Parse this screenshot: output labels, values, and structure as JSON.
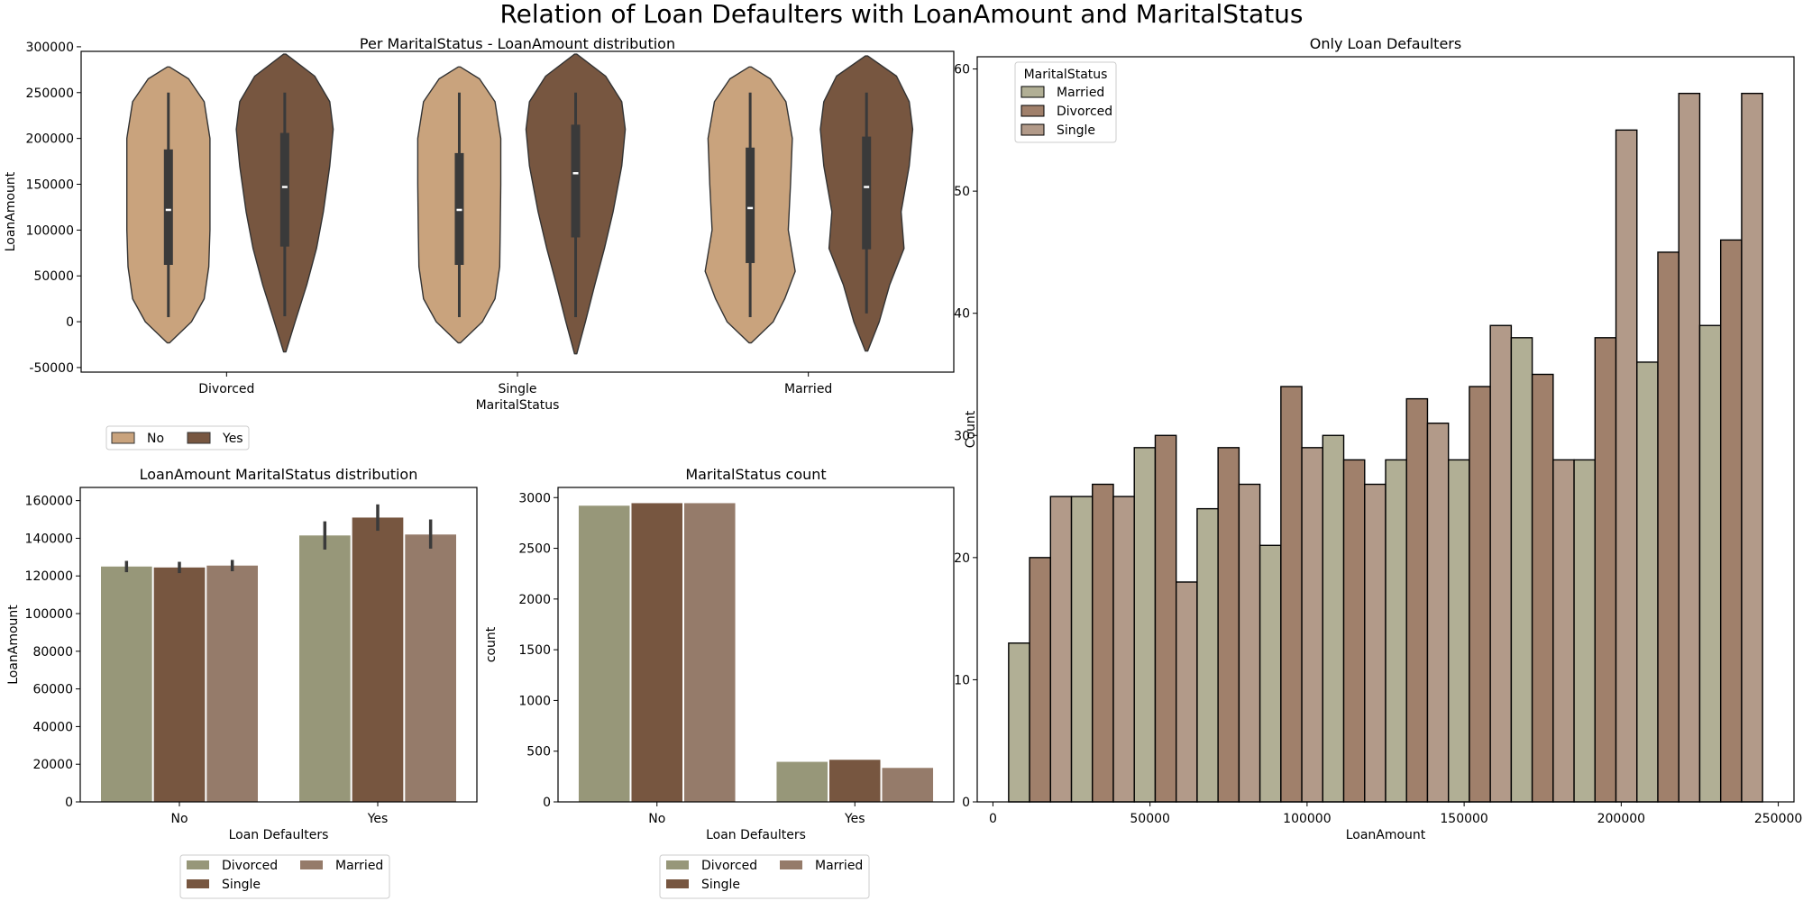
{
  "figure": {
    "title": "Relation of Loan Defaulters with LoanAmount and MaritalStatus"
  },
  "colors": {
    "violin_no": "#c9a37d",
    "violin_yes": "#775640",
    "bar_divorced": "#979779",
    "bar_single": "#775640",
    "bar_married": "#957b6a",
    "hist_married": "#b1af95",
    "hist_divorced": "#a0806b",
    "hist_single": "#b29a89"
  },
  "chart_data": [
    {
      "id": "violin",
      "type": "violin",
      "title": "Per MaritalStatus - LoanAmount distribution",
      "xlabel": "MaritalStatus",
      "ylabel": "LoanAmount",
      "ylim": [
        -55000,
        295000
      ],
      "yticks": [
        -50000,
        0,
        50000,
        100000,
        150000,
        200000,
        250000,
        300000
      ],
      "categories": [
        "Divorced",
        "Single",
        "Married"
      ],
      "legend": {
        "placement": "below",
        "entries": [
          "No",
          "Yes"
        ]
      },
      "violins": [
        {
          "category": "Divorced",
          "hue": "No",
          "min": 5000,
          "q1": 62000,
          "median": 122000,
          "q3": 188000,
          "max": 250000,
          "kde_min": -23000,
          "kde_max": 278000,
          "profile": [
            [
              -23000,
              0.02
            ],
            [
              0,
              0.4
            ],
            [
              25000,
              0.62
            ],
            [
              60000,
              0.7
            ],
            [
              100000,
              0.72
            ],
            [
              150000,
              0.72
            ],
            [
              200000,
              0.72
            ],
            [
              240000,
              0.62
            ],
            [
              265000,
              0.35
            ],
            [
              278000,
              0.02
            ]
          ]
        },
        {
          "category": "Divorced",
          "hue": "Yes",
          "min": 6000,
          "q1": 82000,
          "median": 147000,
          "q3": 206000,
          "max": 250000,
          "kde_min": -33000,
          "kde_max": 292000,
          "profile": [
            [
              -33000,
              0.02
            ],
            [
              0,
              0.18
            ],
            [
              40000,
              0.38
            ],
            [
              80000,
              0.55
            ],
            [
              120000,
              0.67
            ],
            [
              170000,
              0.78
            ],
            [
              210000,
              0.84
            ],
            [
              240000,
              0.78
            ],
            [
              268000,
              0.52
            ],
            [
              292000,
              0.02
            ]
          ]
        },
        {
          "category": "Single",
          "hue": "No",
          "min": 5000,
          "q1": 62000,
          "median": 122000,
          "q3": 184000,
          "max": 250000,
          "kde_min": -23000,
          "kde_max": 278000,
          "profile": [
            [
              -23000,
              0.02
            ],
            [
              0,
              0.4
            ],
            [
              25000,
              0.62
            ],
            [
              60000,
              0.7
            ],
            [
              100000,
              0.71
            ],
            [
              150000,
              0.72
            ],
            [
              200000,
              0.72
            ],
            [
              240000,
              0.62
            ],
            [
              265000,
              0.35
            ],
            [
              278000,
              0.02
            ]
          ]
        },
        {
          "category": "Single",
          "hue": "Yes",
          "min": 5000,
          "q1": 92000,
          "median": 162000,
          "q3": 215000,
          "max": 250000,
          "kde_min": -35000,
          "kde_max": 292000,
          "profile": [
            [
              -35000,
              0.02
            ],
            [
              0,
              0.17
            ],
            [
              40000,
              0.33
            ],
            [
              80000,
              0.5
            ],
            [
              120000,
              0.65
            ],
            [
              170000,
              0.8
            ],
            [
              210000,
              0.86
            ],
            [
              240000,
              0.8
            ],
            [
              268000,
              0.52
            ],
            [
              292000,
              0.02
            ]
          ]
        },
        {
          "category": "Married",
          "hue": "No",
          "min": 5000,
          "q1": 64000,
          "median": 124000,
          "q3": 190000,
          "max": 250000,
          "kde_min": -23000,
          "kde_max": 278000,
          "profile": [
            [
              -23000,
              0.02
            ],
            [
              0,
              0.4
            ],
            [
              25000,
              0.6
            ],
            [
              55000,
              0.78
            ],
            [
              100000,
              0.66
            ],
            [
              150000,
              0.7
            ],
            [
              200000,
              0.73
            ],
            [
              240000,
              0.62
            ],
            [
              265000,
              0.35
            ],
            [
              278000,
              0.02
            ]
          ]
        },
        {
          "category": "Married",
          "hue": "Yes",
          "min": 9000,
          "q1": 79000,
          "median": 147000,
          "q3": 202000,
          "max": 250000,
          "kde_min": -32000,
          "kde_max": 290000,
          "profile": [
            [
              -32000,
              0.02
            ],
            [
              0,
              0.22
            ],
            [
              40000,
              0.4
            ],
            [
              80000,
              0.65
            ],
            [
              120000,
              0.6
            ],
            [
              170000,
              0.74
            ],
            [
              210000,
              0.8
            ],
            [
              240000,
              0.74
            ],
            [
              268000,
              0.52
            ],
            [
              290000,
              0.02
            ]
          ]
        }
      ]
    },
    {
      "id": "meanbar",
      "type": "bar",
      "title": "LoanAmount MaritalStatus distribution",
      "xlabel": "Loan Defaulters",
      "ylabel": "LoanAmount",
      "ylim": [
        0,
        167000
      ],
      "yticks": [
        0,
        20000,
        40000,
        60000,
        80000,
        100000,
        120000,
        140000,
        160000
      ],
      "categories": [
        "No",
        "Yes"
      ],
      "legend": {
        "placement": "below",
        "entries": [
          "Divorced",
          "Single",
          "Married"
        ]
      },
      "series": [
        {
          "name": "Divorced",
          "values": [
            125000,
            141500
          ],
          "err_low": [
            122000,
            134000
          ],
          "err_high": [
            128000,
            149000
          ]
        },
        {
          "name": "Single",
          "values": [
            124500,
            151000
          ],
          "err_low": [
            121500,
            144000
          ],
          "err_high": [
            127500,
            158000
          ]
        },
        {
          "name": "Married",
          "values": [
            125500,
            142000
          ],
          "err_low": [
            122500,
            134500
          ],
          "err_high": [
            128500,
            150000
          ]
        }
      ]
    },
    {
      "id": "countbar",
      "type": "bar",
      "title": "MaritalStatus count",
      "xlabel": "Loan Defaulters",
      "ylabel": "count",
      "ylim": [
        0,
        3100
      ],
      "yticks": [
        0,
        500,
        1000,
        1500,
        2000,
        2500,
        3000
      ],
      "categories": [
        "No",
        "Yes"
      ],
      "legend": {
        "placement": "below",
        "entries": [
          "Divorced",
          "Single",
          "Married"
        ]
      },
      "series": [
        {
          "name": "Divorced",
          "values": [
            2920,
            395
          ]
        },
        {
          "name": "Single",
          "values": [
            2945,
            415
          ]
        },
        {
          "name": "Married",
          "values": [
            2945,
            335
          ]
        }
      ]
    },
    {
      "id": "hist",
      "type": "bar",
      "title": "Only Loan Defaulters",
      "xlabel": "LoanAmount",
      "ylabel": "Count",
      "xlim": [
        -5000,
        255000
      ],
      "ylim": [
        0,
        61
      ],
      "xticks": [
        0,
        50000,
        100000,
        150000,
        200000,
        250000
      ],
      "yticks": [
        0,
        10,
        20,
        30,
        40,
        50,
        60
      ],
      "legend": {
        "placement": "top-left",
        "title": "MaritalStatus",
        "entries": [
          "Married",
          "Divorced",
          "Single"
        ]
      },
      "bin_edges": [
        5000,
        25000,
        45000,
        65000,
        85000,
        105000,
        125000,
        145000,
        165000,
        185000,
        205000,
        225000,
        245000
      ],
      "series": [
        {
          "name": "Married",
          "values": [
            13,
            25,
            29,
            24,
            21,
            30,
            28,
            28,
            38,
            28,
            36,
            39
          ]
        },
        {
          "name": "Divorced",
          "values": [
            20,
            26,
            30,
            29,
            34,
            28,
            33,
            34,
            35,
            38,
            45,
            46
          ]
        },
        {
          "name": "Single",
          "values": [
            25,
            25,
            18,
            26,
            29,
            26,
            31,
            39,
            28,
            55,
            58,
            58
          ]
        }
      ]
    }
  ]
}
